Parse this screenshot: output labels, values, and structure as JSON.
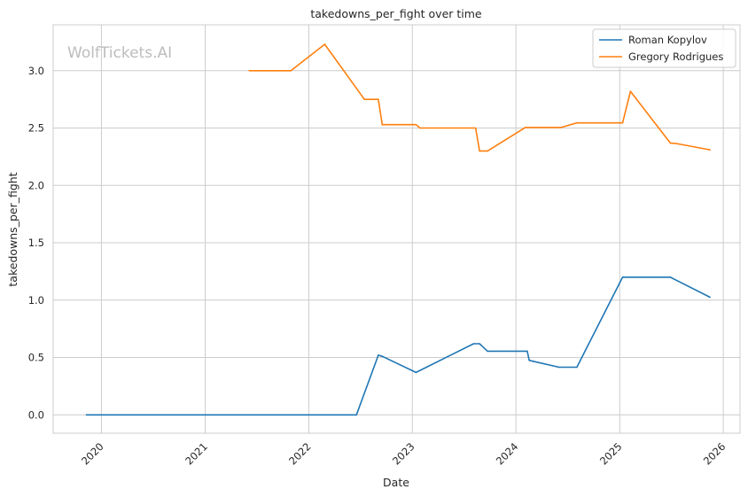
{
  "chart_data": {
    "type": "line",
    "title": "takedowns_per_fight over time",
    "xlabel": "Date",
    "ylabel": "takedowns_per_fight",
    "watermark": "WolfTickets.AI",
    "x_ticks": [
      "2020",
      "2021",
      "2022",
      "2023",
      "2024",
      "2025",
      "2026"
    ],
    "y_ticks": [
      "0.0",
      "0.5",
      "1.0",
      "1.5",
      "2.0",
      "2.5",
      "3.0"
    ],
    "xlim": [
      "2019-07-15",
      "2026-03-01"
    ],
    "ylim": [
      -0.16,
      3.4
    ],
    "grid": true,
    "legend_position": "top-right",
    "series": [
      {
        "name": "Roman Kopylov",
        "color": "#1f77b4",
        "points": [
          [
            "2019-11-09",
            0.0
          ],
          [
            "2022-06-18",
            0.0
          ],
          [
            "2022-09-03",
            0.52
          ],
          [
            "2022-09-17",
            0.51
          ],
          [
            "2023-01-14",
            0.37
          ],
          [
            "2023-08-05",
            0.62
          ],
          [
            "2023-08-26",
            0.62
          ],
          [
            "2023-09-23",
            0.555
          ],
          [
            "2024-02-10",
            0.555
          ],
          [
            "2024-02-17",
            0.475
          ],
          [
            "2024-06-01",
            0.415
          ],
          [
            "2024-08-03",
            0.415
          ],
          [
            "2025-01-11",
            1.2
          ],
          [
            "2025-06-28",
            1.2
          ],
          [
            "2025-11-15",
            1.025
          ]
        ]
      },
      {
        "name": "Gregory Rodrigues",
        "color": "#ff7f0e",
        "points": [
          [
            "2021-06-05",
            3.0
          ],
          [
            "2021-10-30",
            3.0
          ],
          [
            "2022-02-26",
            3.23
          ],
          [
            "2022-07-16",
            2.75
          ],
          [
            "2022-09-03",
            2.75
          ],
          [
            "2022-09-17",
            2.53
          ],
          [
            "2023-01-14",
            2.53
          ],
          [
            "2023-01-28",
            2.5
          ],
          [
            "2023-08-12",
            2.5
          ],
          [
            "2023-08-26",
            2.3
          ],
          [
            "2023-09-23",
            2.3
          ],
          [
            "2024-02-03",
            2.505
          ],
          [
            "2024-06-08",
            2.505
          ],
          [
            "2024-08-03",
            2.545
          ],
          [
            "2025-01-11",
            2.545
          ],
          [
            "2025-02-08",
            2.82
          ],
          [
            "2025-06-28",
            2.37
          ],
          [
            "2025-07-19",
            2.365
          ],
          [
            "2025-11-15",
            2.31
          ]
        ]
      }
    ]
  }
}
